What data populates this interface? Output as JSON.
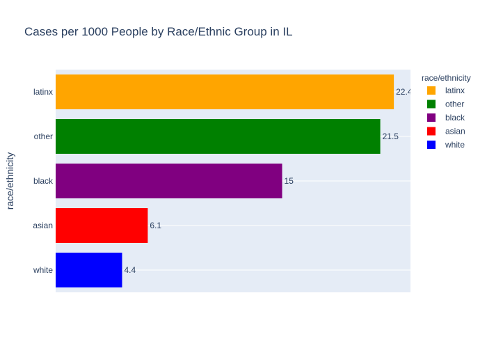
{
  "chart_data": {
    "type": "bar",
    "orientation": "horizontal",
    "title": "Cases per 1000 People by Race/Ethnic Group in IL",
    "xlabel": "",
    "ylabel": "race/ethnicity",
    "categories": [
      "latinx",
      "other",
      "black",
      "asian",
      "white"
    ],
    "values": [
      22.4,
      21.5,
      15,
      6.1,
      4.4
    ],
    "data_labels": [
      "22.4",
      "21.5",
      "15",
      "6.1",
      "4.4"
    ],
    "colors": [
      "#FFA500",
      "#008000",
      "#800080",
      "#FF0000",
      "#0000FF"
    ],
    "xlim": [
      0,
      23.5
    ],
    "grid": true,
    "plot_background": "#E5ECF6",
    "legend": {
      "title": "race/ethnicity",
      "placement": "top-right",
      "items": [
        "latinx",
        "other",
        "black",
        "asian",
        "white"
      ]
    }
  }
}
